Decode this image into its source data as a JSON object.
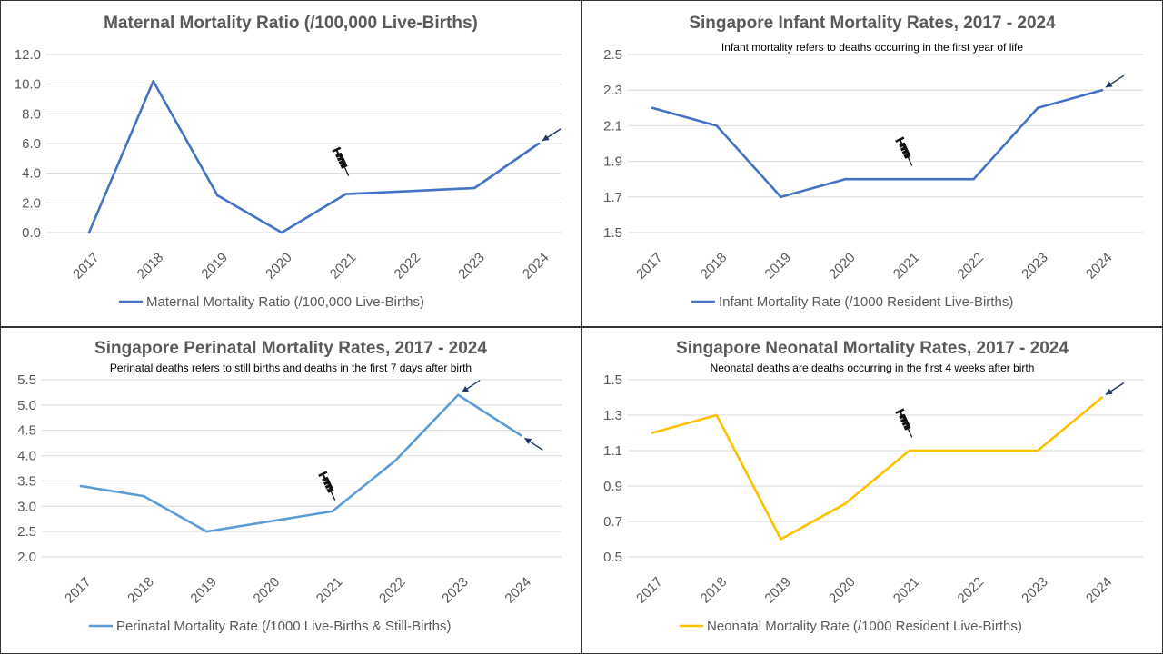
{
  "chart_data": [
    {
      "type": "line",
      "title": "Maternal Mortality Ratio (/100,000 Live-Births)",
      "subtitle": "",
      "categories": [
        "2017",
        "2018",
        "2019",
        "2020",
        "2021",
        "2022",
        "2023",
        "2024"
      ],
      "series": [
        {
          "name": "Maternal Mortality Ratio (/100,000 Live-Births)",
          "values": [
            0.0,
            10.2,
            2.5,
            0.0,
            2.6,
            2.8,
            3.0,
            6.0
          ],
          "color": "#4472C4"
        }
      ],
      "ylim": [
        0,
        12
      ],
      "yticks": [
        "0.0",
        "2.0",
        "4.0",
        "6.0",
        "8.0",
        "10.0",
        "12.0"
      ],
      "grid": true,
      "legend": "bottom",
      "annotations": [
        {
          "type": "syringe-icon",
          "category": "2021",
          "y": 4.6
        },
        {
          "type": "arrow",
          "category": "2024",
          "y": 6.0,
          "direction": "from-upper-right"
        }
      ]
    },
    {
      "type": "line",
      "title": "Singapore Infant Mortality Rates, 2017 - 2024",
      "subtitle": "Infant mortality refers to deaths occurring in the first year of life",
      "categories": [
        "2017",
        "2018",
        "2019",
        "2020",
        "2021",
        "2022",
        "2023",
        "2024"
      ],
      "series": [
        {
          "name": "Infant Mortality Rate (/1000 Resident Live-Births)",
          "values": [
            2.2,
            2.1,
            1.7,
            1.8,
            1.8,
            1.8,
            2.2,
            2.3
          ],
          "color": "#4472C4"
        }
      ],
      "ylim": [
        1.5,
        2.5
      ],
      "yticks": [
        "1.5",
        "1.7",
        "1.9",
        "2.1",
        "2.3",
        "2.5"
      ],
      "grid": true,
      "legend": "bottom",
      "annotations": [
        {
          "type": "syringe-icon",
          "category": "2021",
          "y": 1.94
        },
        {
          "type": "arrow",
          "category": "2024",
          "y": 2.3,
          "direction": "from-upper-right"
        }
      ]
    },
    {
      "type": "line",
      "title": "Singapore Perinatal Mortality Rates, 2017 - 2024",
      "subtitle": "Perinatal deaths refers to still births and deaths in the first 7 days after birth",
      "categories": [
        "2017",
        "2018",
        "2019",
        "2020",
        "2021",
        "2022",
        "2023",
        "2024"
      ],
      "series": [
        {
          "name": "Perinatal Mortality Rate (/1000 Live-Births & Still-Births)",
          "values": [
            3.4,
            3.2,
            2.5,
            2.7,
            2.9,
            3.9,
            5.2,
            4.4
          ],
          "color": "#5B9BD5"
        }
      ],
      "ylim": [
        2.0,
        5.5
      ],
      "yticks": [
        "2.0",
        "2.5",
        "3.0",
        "3.5",
        "4.0",
        "4.5",
        "5.0",
        "5.5"
      ],
      "grid": true,
      "legend": "bottom",
      "annotations": [
        {
          "type": "syringe-icon",
          "category": "2021",
          "y": 3.35
        },
        {
          "type": "arrow",
          "category": "2023",
          "y": 5.2,
          "direction": "from-upper-right"
        },
        {
          "type": "arrow",
          "category": "2024",
          "y": 4.4,
          "direction": "from-lower-right"
        }
      ]
    },
    {
      "type": "line",
      "title": "Singapore Neonatal Mortality Rates, 2017 - 2024",
      "subtitle": "Neonatal deaths are deaths occurring in the first 4 weeks after birth",
      "categories": [
        "2017",
        "2018",
        "2019",
        "2020",
        "2021",
        "2022",
        "2023",
        "2024"
      ],
      "series": [
        {
          "name": "Neonatal Mortality Rate (/1000 Resident Live-Births)",
          "values": [
            1.2,
            1.3,
            0.6,
            0.8,
            1.1,
            1.1,
            1.1,
            1.4
          ],
          "color": "#FFC000"
        }
      ],
      "ylim": [
        0.5,
        1.5
      ],
      "yticks": [
        "0.5",
        "0.7",
        "0.9",
        "1.1",
        "1.3",
        "1.5"
      ],
      "grid": true,
      "legend": "bottom",
      "annotations": [
        {
          "type": "syringe-icon",
          "category": "2021",
          "y": 1.24
        },
        {
          "type": "arrow",
          "category": "2024",
          "y": 1.4,
          "direction": "from-upper-right"
        }
      ]
    }
  ]
}
